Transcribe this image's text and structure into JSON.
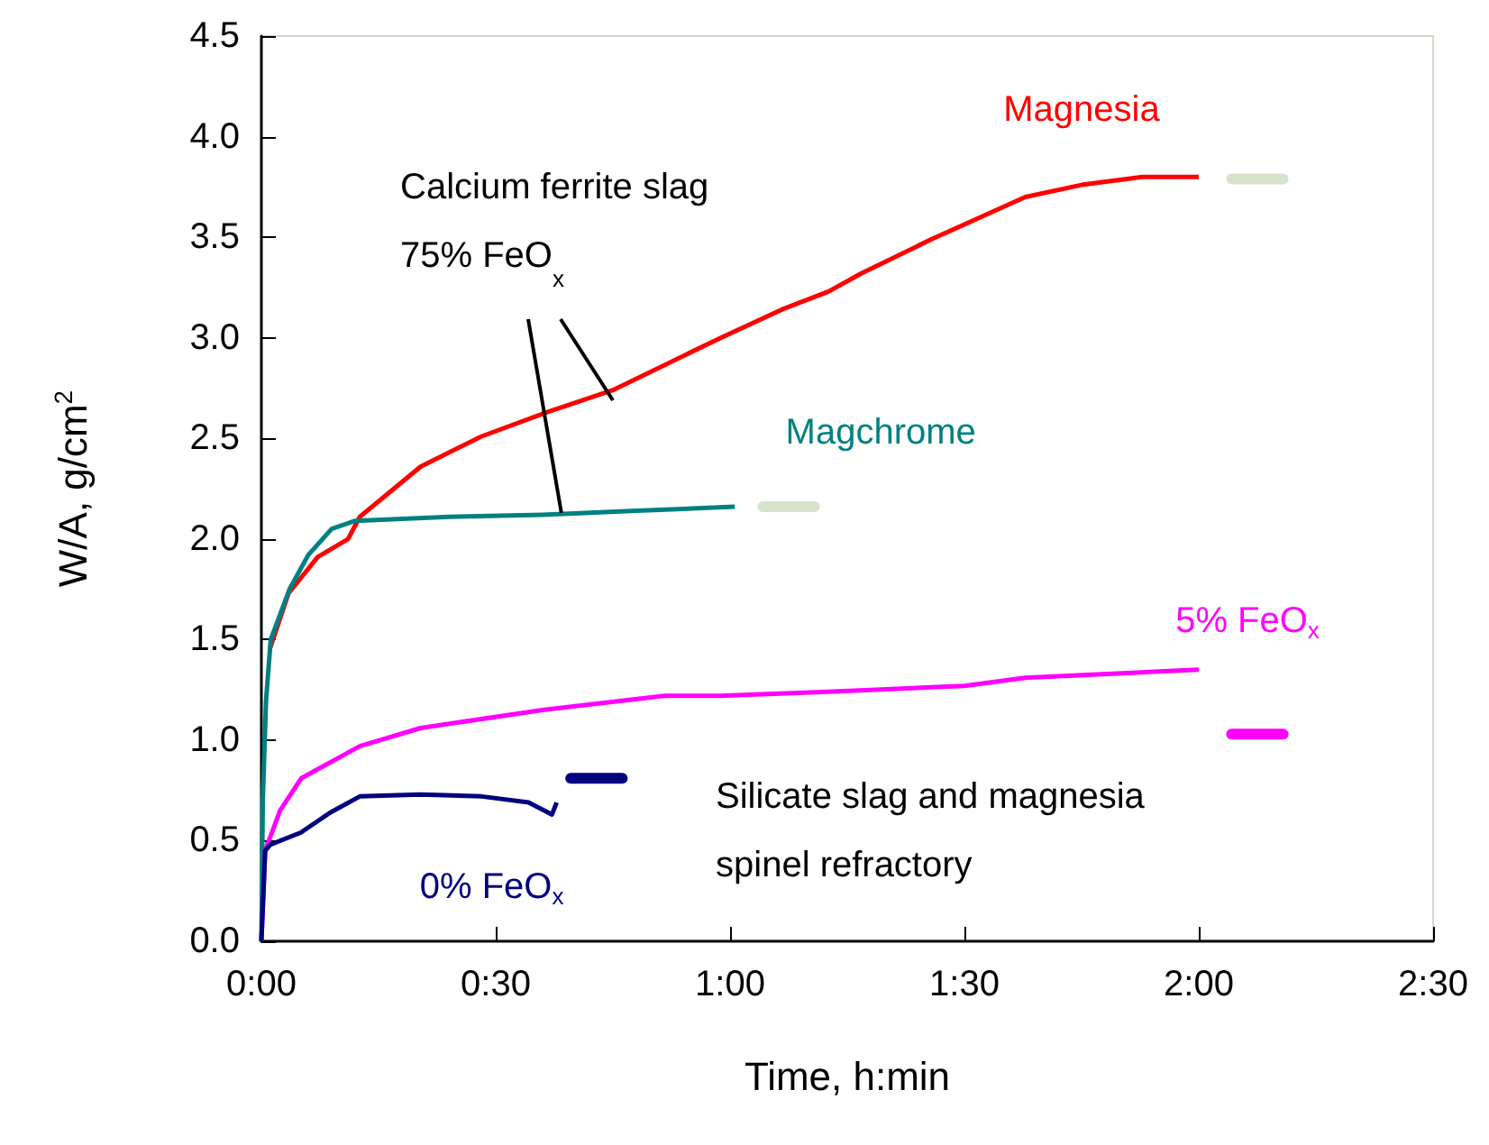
{
  "chart_data": {
    "type": "line",
    "xlabel": "Time, h:min",
    "ylabel": "W/A, g/cm$^{2}$",
    "xlim": [
      0,
      2.5
    ],
    "xticks": [
      {
        "value": 0,
        "label": "0:00"
      },
      {
        "value": 0.5,
        "label": "0:30"
      },
      {
        "value": 1,
        "label": "1:00"
      },
      {
        "value": 1.5,
        "label": "1:30"
      },
      {
        "value": 2,
        "label": "2:00"
      },
      {
        "value": 2.5,
        "label": "2:30"
      }
    ],
    "ylim": [
      0,
      4.5
    ],
    "yticks": [
      {
        "value": 0,
        "label": "0.0"
      },
      0.5,
      {
        "value": 1,
        "label": "1.0"
      },
      1.5,
      {
        "value": 2,
        "label": "2.0"
      },
      2.5,
      {
        "value": 3,
        "label": "3.0"
      },
      3.5,
      {
        "value": 4,
        "label": "4.0"
      },
      4.5
    ],
    "grid": false,
    "legend": false,
    "annotations": [
      "Calcium ferrite slag",
      {
        "text": "75% FeO$_{x}$",
        "x": 0.64,
        "y": 2.13
      },
      "Silicate slag and magnesia\nspinel refractory"
    ],
    "series": [
      {
        "name": "Magnesia",
        "color": "#ff0000",
        "x": [
          0.019,
          0.058,
          0.096,
          0.12,
          0.185,
          0.21,
          0.34,
          0.47,
          0.61,
          0.75,
          0.98,
          1.11,
          1.21,
          1.28,
          1.43,
          1.63,
          1.75,
          1.88,
          2.0
        ],
        "values": [
          1.46,
          1.73,
          1.84,
          1.91,
          2.0,
          2.11,
          2.36,
          2.51,
          2.63,
          2.74,
          3.0,
          3.14,
          3.23,
          3.32,
          3.49,
          3.7,
          3.76,
          3.8,
          3.8
        ]
      },
      {
        "name": "Magchrome",
        "color": "#008080",
        "x": [
          0,
          0.003,
          0.01,
          0.02,
          0.06,
          0.1,
          0.15,
          0.2,
          0.4,
          0.6,
          0.8,
          1.01
        ],
        "values": [
          0,
          0.7,
          1.2,
          1.5,
          1.75,
          1.92,
          2.05,
          2.09,
          2.11,
          2.12,
          2.14,
          2.16
        ]
      },
      {
        "name": "5% FeO$_{x}$",
        "color": "#ff00ff",
        "x": [
          0,
          0.008,
          0.04,
          0.085,
          0.21,
          0.34,
          0.6,
          0.86,
          0.98,
          1.21,
          1.5,
          1.63,
          2.0
        ],
        "values": [
          0,
          0.45,
          0.65,
          0.81,
          0.97,
          1.06,
          1.15,
          1.22,
          1.22,
          1.24,
          1.27,
          1.31,
          1.35
        ]
      },
      {
        "name": "0% FeO$_{x}$",
        "color": "#000080",
        "x": [
          0,
          0.008,
          0.019,
          0.084,
          0.147,
          0.21,
          0.34,
          0.47,
          0.57,
          0.62,
          0.63
        ],
        "values": [
          0,
          0.45,
          0.48,
          0.54,
          0.64,
          0.72,
          0.73,
          0.72,
          0.69,
          0.63,
          0.69
        ]
      },
      {
        "color": "#000080",
        "x": [
          0.66,
          0.77
        ],
        "values": [
          0.81,
          0.81
        ]
      },
      {
        "color": "#ff00ff",
        "x": [
          2.07,
          2.18
        ],
        "values": [
          1.03,
          1.03
        ]
      },
      {
        "color": "#d6e4cc",
        "x": [
          2.07,
          2.18
        ],
        "values": [
          3.79,
          3.79
        ]
      },
      {
        "color": "#d6e4cc",
        "x": [
          1.07,
          1.18
        ],
        "values": [
          2.16,
          2.16
        ]
      }
    ]
  }
}
